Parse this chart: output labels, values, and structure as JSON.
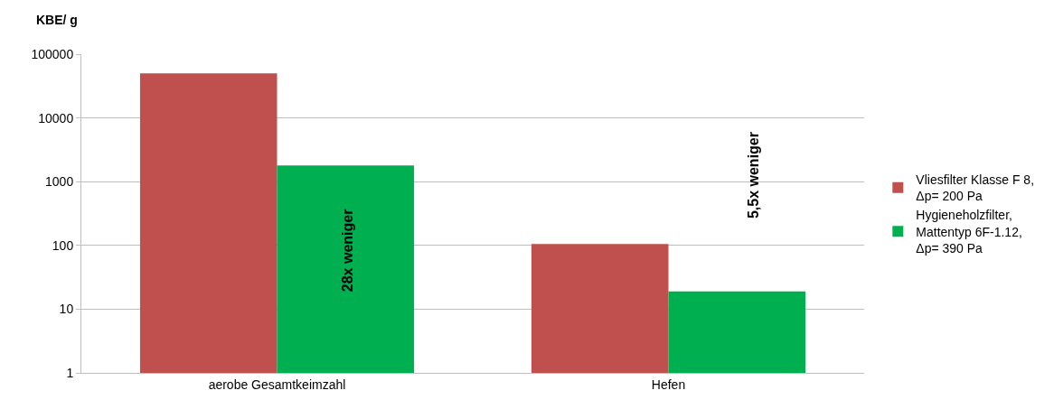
{
  "chart_data": {
    "type": "bar",
    "ylabel": "KBE/ g",
    "categories": [
      "aerobe Gesamtkeimzahl",
      "Hefen"
    ],
    "series": [
      {
        "name": "Vliesfilter Klasse F 8,\nΔp= 200 Pa",
        "color": "#c0504d",
        "values": [
          50000,
          105
        ]
      },
      {
        "name": "Hygieneholzfilter,\nMattentyp 6F-1.12,\nΔp= 390 Pa",
        "color": "#00b050",
        "values": [
          1800,
          19
        ]
      }
    ],
    "annotations": [
      "28x weniger",
      "5,5x weniger"
    ],
    "log": "y",
    "ylim": [
      1,
      100000
    ],
    "yticks": [
      1,
      10,
      100,
      1000,
      10000,
      100000
    ],
    "grid": "y",
    "legend": "right"
  }
}
